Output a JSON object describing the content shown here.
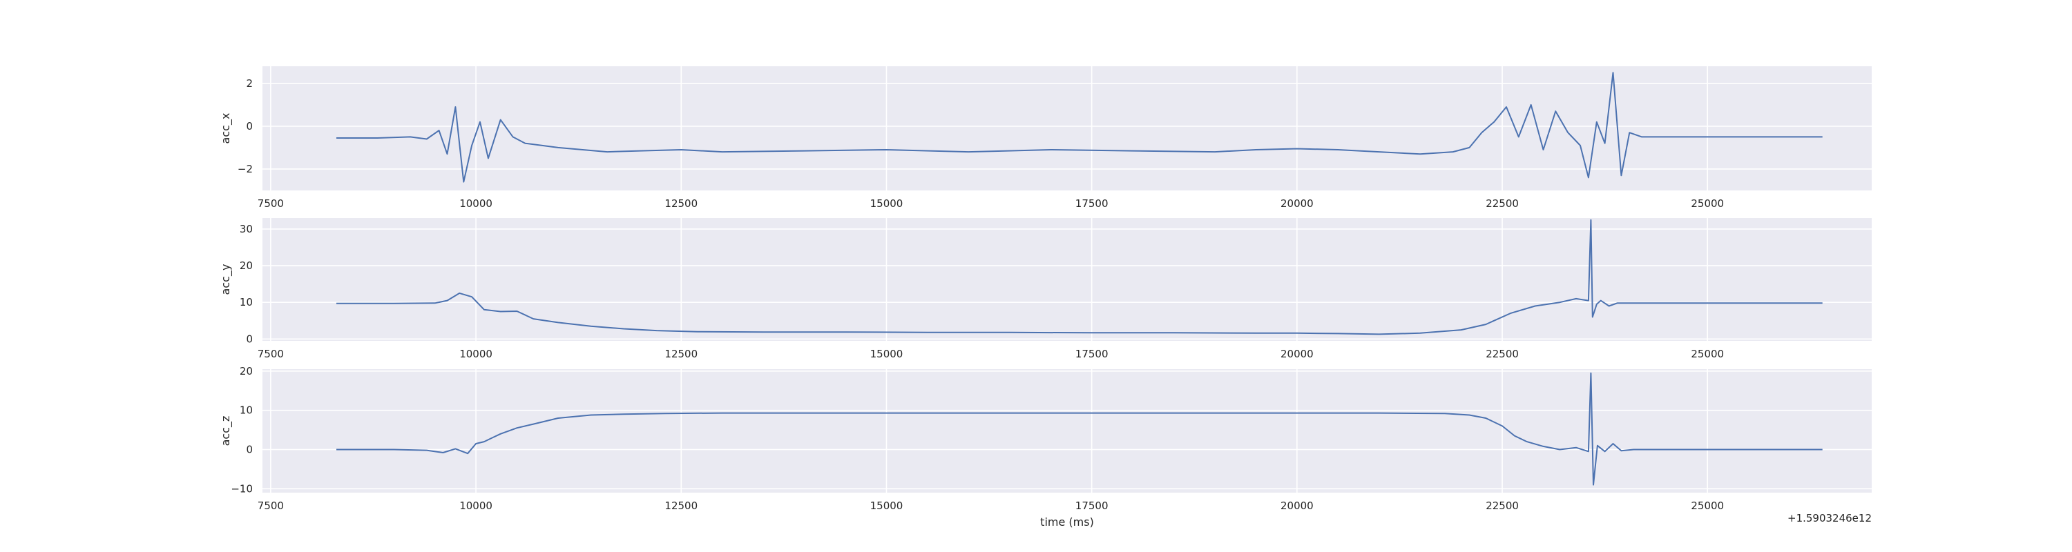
{
  "figure": {
    "background": "#ffffff",
    "plot_background": "#eaeaf2",
    "grid_color": "#ffffff",
    "line_color": "#4c72b0"
  },
  "chart_data": [
    {
      "type": "line",
      "title": "",
      "xlabel": "",
      "ylabel": "acc_x",
      "x_offset_label": "",
      "xlim": [
        7400,
        27000
      ],
      "ylim": [
        -3,
        2.8
      ],
      "xticks": [
        7500,
        10000,
        12500,
        15000,
        17500,
        20000,
        22500,
        25000
      ],
      "yticks": [
        -2,
        0,
        2
      ],
      "grid": true,
      "series": [
        {
          "x": [
            8300,
            8800,
            9200,
            9400,
            9550,
            9650,
            9750,
            9850,
            9950,
            10050,
            10150,
            10300,
            10450,
            10600,
            10800,
            11000,
            11300,
            11600,
            12000,
            12500,
            13000,
            14000,
            15000,
            16000,
            17000,
            18000,
            19000,
            19500,
            20000,
            20500,
            21000,
            21500,
            21900,
            22100,
            22250,
            22400,
            22550,
            22700,
            22850,
            23000,
            23150,
            23300,
            23450,
            23550,
            23650,
            23750,
            23850,
            23950,
            24050,
            24200,
            24500,
            25000,
            25500,
            26000,
            26400
          ],
          "values": [
            -0.55,
            -0.55,
            -0.5,
            -0.6,
            -0.2,
            -1.3,
            0.9,
            -2.6,
            -0.9,
            0.2,
            -1.5,
            0.3,
            -0.5,
            -0.8,
            -0.9,
            -1.0,
            -1.1,
            -1.2,
            -1.15,
            -1.1,
            -1.2,
            -1.15,
            -1.1,
            -1.2,
            -1.1,
            -1.15,
            -1.2,
            -1.1,
            -1.05,
            -1.1,
            -1.2,
            -1.3,
            -1.2,
            -1.0,
            -0.3,
            0.2,
            0.9,
            -0.5,
            1.0,
            -1.1,
            0.7,
            -0.3,
            -0.9,
            -2.4,
            0.2,
            -0.8,
            2.5,
            -2.3,
            -0.3,
            -0.5,
            -0.5,
            -0.5,
            -0.5,
            -0.5,
            -0.5
          ]
        }
      ]
    },
    {
      "type": "line",
      "title": "",
      "xlabel": "",
      "ylabel": "acc_y",
      "x_offset_label": "",
      "xlim": [
        7400,
        27000
      ],
      "ylim": [
        -0.5,
        33
      ],
      "xticks": [
        7500,
        10000,
        12500,
        15000,
        17500,
        20000,
        22500,
        25000
      ],
      "yticks": [
        0,
        10,
        20,
        30
      ],
      "grid": true,
      "series": [
        {
          "x": [
            8300,
            9000,
            9500,
            9650,
            9800,
            9950,
            10100,
            10300,
            10500,
            10700,
            11000,
            11400,
            11800,
            12200,
            12700,
            13500,
            14500,
            15500,
            16500,
            17500,
            18500,
            19500,
            20000,
            20500,
            21000,
            21500,
            22000,
            22300,
            22600,
            22900,
            23200,
            23400,
            23550,
            23580,
            23600,
            23650,
            23700,
            23800,
            23900,
            24100,
            24500,
            25000,
            25500,
            26000,
            26400
          ],
          "values": [
            9.7,
            9.7,
            9.8,
            10.5,
            12.5,
            11.5,
            8.0,
            7.5,
            7.6,
            5.5,
            4.5,
            3.5,
            2.8,
            2.3,
            2.0,
            1.9,
            1.9,
            1.8,
            1.8,
            1.7,
            1.7,
            1.6,
            1.6,
            1.5,
            1.3,
            1.6,
            2.5,
            4.0,
            7.0,
            9.0,
            10.0,
            11.0,
            10.5,
            32.5,
            6.0,
            9.5,
            10.5,
            9.0,
            9.8,
            9.8,
            9.8,
            9.8,
            9.8,
            9.8,
            9.8
          ]
        }
      ]
    },
    {
      "type": "line",
      "title": "",
      "xlabel": "time (ms)",
      "ylabel": "acc_z",
      "x_offset_label": "+1.5903246e12",
      "xlim": [
        7400,
        27000
      ],
      "ylim": [
        -11,
        20.5
      ],
      "xticks": [
        7500,
        10000,
        12500,
        15000,
        17500,
        20000,
        22500,
        25000
      ],
      "yticks": [
        -10,
        0,
        10,
        20
      ],
      "grid": true,
      "series": [
        {
          "x": [
            8300,
            9000,
            9400,
            9600,
            9750,
            9900,
            10000,
            10100,
            10200,
            10300,
            10500,
            10700,
            11000,
            11400,
            11800,
            12300,
            13000,
            14000,
            15000,
            16000,
            17000,
            18000,
            19000,
            20000,
            21000,
            21800,
            22100,
            22300,
            22500,
            22650,
            22800,
            23000,
            23200,
            23400,
            23550,
            23580,
            23610,
            23660,
            23750,
            23850,
            23950,
            24100,
            24500,
            25000,
            25500,
            26000,
            26400
          ],
          "values": [
            0.0,
            0.0,
            -0.2,
            -0.8,
            0.2,
            -1.0,
            1.5,
            2.0,
            3.0,
            4.0,
            5.5,
            6.5,
            8.0,
            8.8,
            9.0,
            9.2,
            9.3,
            9.3,
            9.3,
            9.3,
            9.3,
            9.3,
            9.3,
            9.3,
            9.3,
            9.2,
            8.8,
            8.0,
            6.0,
            3.5,
            2.0,
            0.8,
            0.0,
            0.5,
            -0.5,
            19.5,
            -9.0,
            1.0,
            -0.5,
            1.5,
            -0.3,
            0.0,
            0.0,
            0.0,
            0.0,
            0.0,
            0.0
          ]
        }
      ]
    }
  ]
}
